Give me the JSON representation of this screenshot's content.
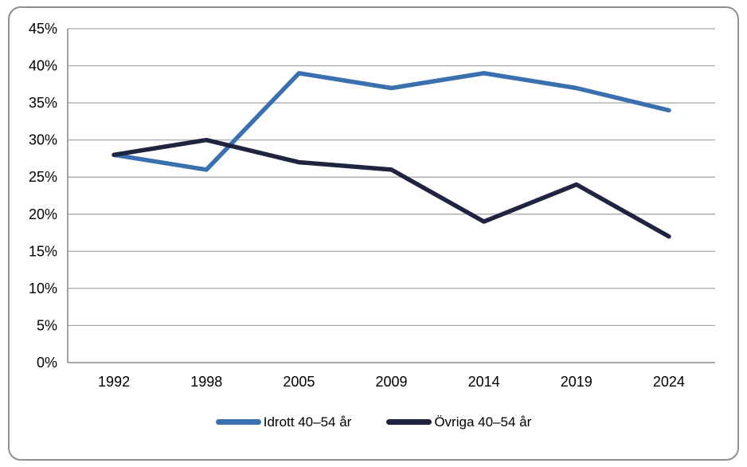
{
  "chart_data": {
    "type": "line",
    "title": "",
    "xlabel": "",
    "ylabel": "",
    "categories": [
      "1992",
      "1998",
      "2005",
      "2009",
      "2014",
      "2019",
      "2024"
    ],
    "series": [
      {
        "name": "Idrott 40–54 år",
        "color": "#3A70B0",
        "values": [
          28,
          26,
          39,
          37,
          39,
          37,
          34
        ]
      },
      {
        "name": "Övriga 40–54 år",
        "color": "#1F2440",
        "values": [
          28,
          30,
          27,
          26,
          19,
          24,
          17
        ]
      }
    ],
    "ylim": [
      0,
      45
    ],
    "ytick_step": 5,
    "yticks": [
      "0%",
      "5%",
      "10%",
      "15%",
      "20%",
      "25%",
      "30%",
      "35%",
      "40%",
      "45%"
    ],
    "grid": true,
    "legend_position": "bottom"
  },
  "styles": {
    "grid_color": "#a3a3a3",
    "axis_color": "#8c8c8c",
    "frame_border_color": "#8f8f8f",
    "label_color": "#000000",
    "background": "#ffffff",
    "line_width": 5.5
  }
}
